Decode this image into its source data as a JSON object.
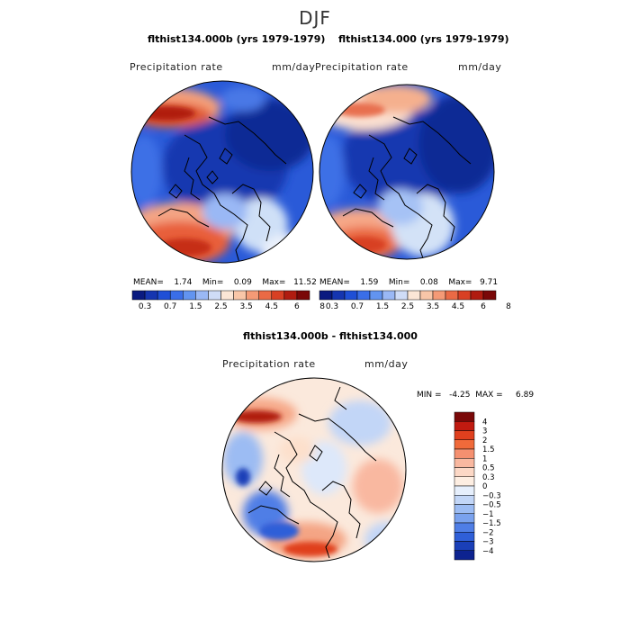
{
  "season": "DJF",
  "panels": [
    {
      "title": "flthist134.000b (yrs 1979-1979)",
      "variable": "Precipitation rate",
      "units": "mm/day",
      "stats": {
        "mean_label": "MEAN=",
        "mean": "1.74",
        "min_label": "Min=",
        "min": "0.09",
        "max_label": "Max=",
        "max": "11.52"
      }
    },
    {
      "title": "flthist134.000 (yrs 1979-1979)",
      "variable": "Precipitation rate",
      "units": "mm/day",
      "stats": {
        "mean_label": "MEAN=",
        "mean": "1.59",
        "min_label": "Min=",
        "min": "0.08",
        "max_label": "Max=",
        "max": "9.71"
      }
    }
  ],
  "horizontal_colorbar": {
    "colors": [
      "#0a1a80",
      "#1535b0",
      "#1f4fd6",
      "#3a6ee8",
      "#6294f0",
      "#9ab8f5",
      "#cfdcf7",
      "#fbe6d6",
      "#f8c6a8",
      "#f49a76",
      "#ea6a45",
      "#d84024",
      "#b01c10",
      "#7a0808"
    ],
    "tick_labels": [
      "0.3",
      "0.7",
      "1.5",
      "2.5",
      "3.5",
      "4.5",
      "6",
      "8"
    ]
  },
  "difference": {
    "title": "flthist134.000b - flthist134.000",
    "variable": "Precipitation rate",
    "units": "mm/day",
    "min_label": "MIN =",
    "min": "-4.25",
    "max_label": "MAX =",
    "max": "6.89",
    "colorbar": {
      "colors": [
        "#7a0808",
        "#c01a10",
        "#e0401e",
        "#f06a3a",
        "#f59070",
        "#f9b8a0",
        "#fcd8c6",
        "#fdeee2",
        "#e6effc",
        "#c2d6f7",
        "#9cbcf3",
        "#7aa2ee",
        "#4f7ee6",
        "#2f5fd8",
        "#1a3fb8",
        "#0d2390"
      ],
      "labels": [
        "4",
        "3",
        "2",
        "1.5",
        "1",
        "0.5",
        "0.3",
        "0",
        "−0.3",
        "−0.5",
        "−1",
        "−1.5",
        "−2",
        "−3",
        "−4"
      ]
    }
  }
}
